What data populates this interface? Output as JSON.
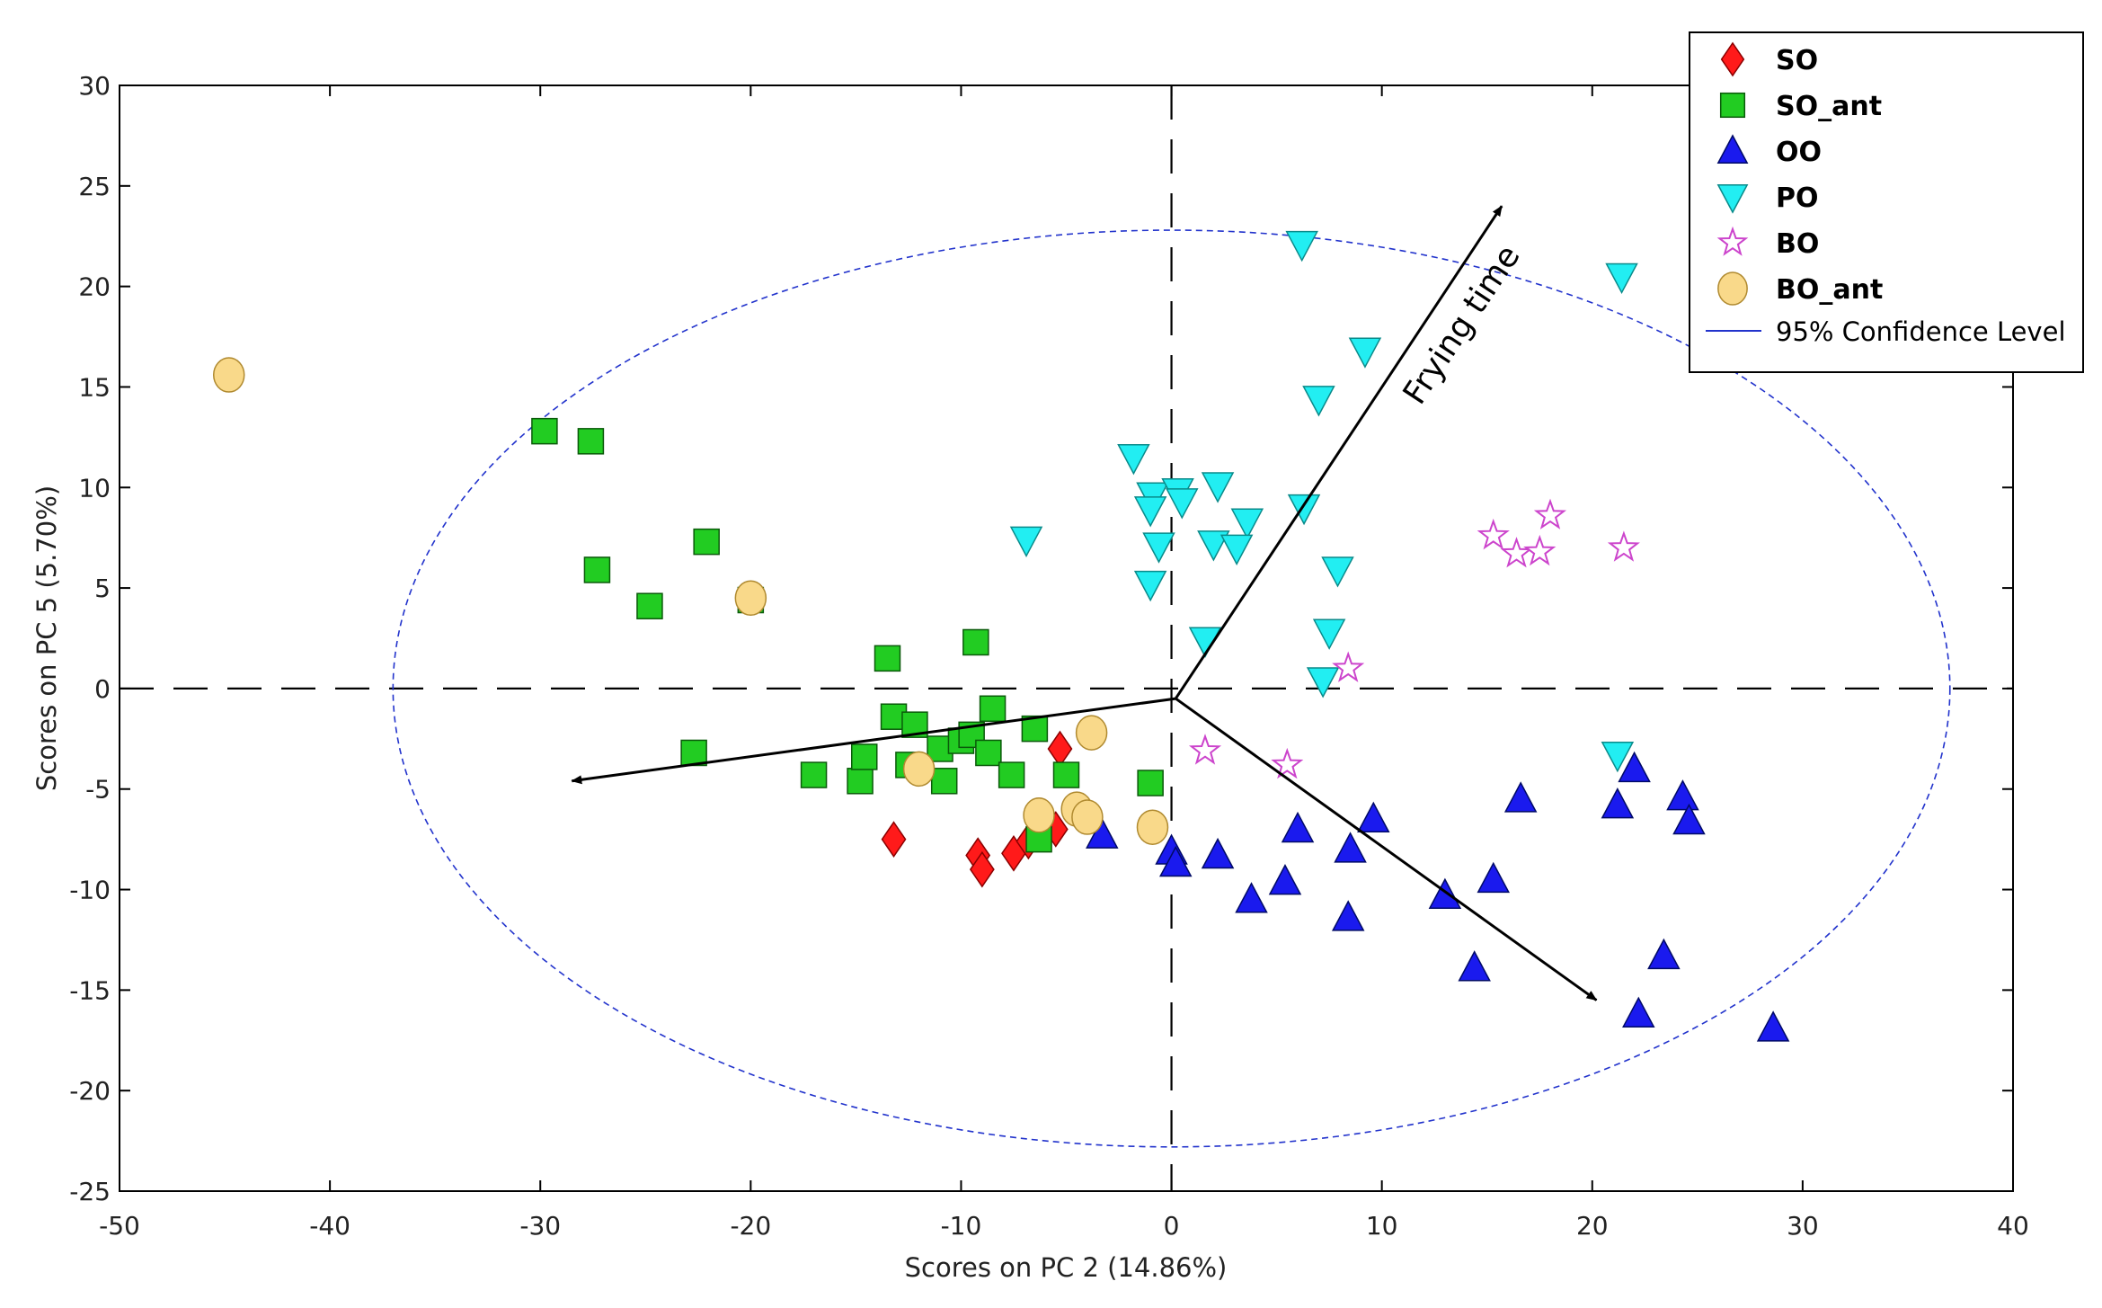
{
  "chart_data": {
    "type": "scatter",
    "title": "",
    "xlabel": "Scores on PC 2 (14.86%)",
    "ylabel": "Scores on PC 5 (5.70%)",
    "xlim": [
      -50,
      40
    ],
    "ylim": [
      -25,
      30
    ],
    "xticks": [
      -50,
      -40,
      -30,
      -20,
      -10,
      0,
      10,
      20,
      30,
      40
    ],
    "yticks": [
      30,
      25,
      20,
      15,
      10,
      5,
      0,
      -5,
      -10,
      -15,
      -20,
      -25
    ],
    "series": [
      {
        "name": "SO",
        "marker": "diamond",
        "color": "#ff1a1a",
        "points": [
          [
            -13.2,
            -7.5
          ],
          [
            -9.2,
            -8.3
          ],
          [
            -9.0,
            -9.0
          ],
          [
            -7.5,
            -8.2
          ],
          [
            -6.8,
            -7.6
          ],
          [
            -5.5,
            -7.0
          ],
          [
            -5.3,
            -3.0
          ]
        ]
      },
      {
        "name": "SO_ant",
        "marker": "square",
        "color": "#22cc22",
        "points": [
          [
            -29.8,
            12.8
          ],
          [
            -27.6,
            12.3
          ],
          [
            -27.3,
            5.9
          ],
          [
            -24.8,
            4.1
          ],
          [
            -22.1,
            7.3
          ],
          [
            -22.7,
            -3.2
          ],
          [
            -20.0,
            4.4
          ],
          [
            -17.0,
            -4.3
          ],
          [
            -14.8,
            -4.6
          ],
          [
            -14.6,
            -3.4
          ],
          [
            -13.5,
            1.5
          ],
          [
            -13.2,
            -1.4
          ],
          [
            -12.5,
            -3.8
          ],
          [
            -12.2,
            -1.8
          ],
          [
            -11.0,
            -3.0
          ],
          [
            -10.8,
            -4.6
          ],
          [
            -10.0,
            -2.6
          ],
          [
            -9.5,
            -2.3
          ],
          [
            -9.3,
            2.3
          ],
          [
            -8.7,
            -3.2
          ],
          [
            -8.5,
            -1.0
          ],
          [
            -7.6,
            -4.3
          ],
          [
            -6.5,
            -2.0
          ],
          [
            -6.3,
            -7.5
          ],
          [
            -5.0,
            -4.3
          ],
          [
            -1.0,
            -4.7
          ]
        ]
      },
      {
        "name": "OO",
        "marker": "triangle-up",
        "color": "#1a1aee",
        "points": [
          [
            -3.3,
            -7.3
          ],
          [
            0.0,
            -8.1
          ],
          [
            0.2,
            -8.7
          ],
          [
            2.2,
            -8.3
          ],
          [
            3.8,
            -10.5
          ],
          [
            5.4,
            -9.6
          ],
          [
            6.0,
            -7.0
          ],
          [
            8.5,
            -8.0
          ],
          [
            8.4,
            -11.4
          ],
          [
            9.6,
            -6.5
          ],
          [
            13.0,
            -10.3
          ],
          [
            14.4,
            -13.9
          ],
          [
            15.3,
            -9.5
          ],
          [
            16.6,
            -5.5
          ],
          [
            21.2,
            -5.8
          ],
          [
            22.0,
            -4.0
          ],
          [
            22.2,
            -16.2
          ],
          [
            23.4,
            -13.3
          ],
          [
            24.3,
            -5.4
          ],
          [
            24.6,
            -6.6
          ],
          [
            28.6,
            -16.9
          ]
        ]
      },
      {
        "name": "PO",
        "marker": "triangle-down",
        "color": "#22eef2",
        "points": [
          [
            6.2,
            22.1
          ],
          [
            21.4,
            20.5
          ],
          [
            9.2,
            16.8
          ],
          [
            7.0,
            14.4
          ],
          [
            -1.8,
            11.5
          ],
          [
            -0.9,
            9.6
          ],
          [
            0.3,
            9.8
          ],
          [
            -1.0,
            8.9
          ],
          [
            0.5,
            9.3
          ],
          [
            2.2,
            10.1
          ],
          [
            3.6,
            8.3
          ],
          [
            6.3,
            9.0
          ],
          [
            -0.6,
            7.1
          ],
          [
            2.0,
            7.2
          ],
          [
            3.1,
            7.0
          ],
          [
            -6.9,
            7.4
          ],
          [
            7.9,
            5.9
          ],
          [
            -1.0,
            5.2
          ],
          [
            1.6,
            2.4
          ],
          [
            7.5,
            2.8
          ],
          [
            7.2,
            0.4
          ],
          [
            21.2,
            -3.3
          ]
        ]
      },
      {
        "name": "BO",
        "marker": "star",
        "color": "#cc44cc",
        "points": [
          [
            15.3,
            7.6
          ],
          [
            16.4,
            6.7
          ],
          [
            17.5,
            6.8
          ],
          [
            18.0,
            8.6
          ],
          [
            21.5,
            7.0
          ],
          [
            8.4,
            1.0
          ],
          [
            1.6,
            -3.1
          ],
          [
            5.5,
            -3.8
          ]
        ]
      },
      {
        "name": "BO_ant",
        "marker": "circle",
        "color": "#f9d98a",
        "points": [
          [
            -44.8,
            15.6
          ],
          [
            -20.0,
            4.5
          ],
          [
            -12.0,
            -4.0
          ],
          [
            -3.8,
            -2.2
          ],
          [
            -6.3,
            -6.3
          ],
          [
            -4.5,
            -6.0
          ],
          [
            -4.0,
            -6.4
          ],
          [
            -0.9,
            -6.9
          ]
        ]
      }
    ],
    "confidence_ellipse": {
      "label": "95% Confidence Level",
      "center": [
        0,
        0
      ],
      "semi_x": 37,
      "semi_y": 22.8,
      "color": "#2233cc"
    },
    "reference_lines": {
      "x": 0,
      "y": 0
    },
    "arrows": [
      {
        "from": [
          0.2,
          -0.5
        ],
        "to": [
          15.7,
          24.0
        ],
        "label": "Frying time"
      },
      {
        "from": [
          0.2,
          -0.5
        ],
        "to": [
          -28.5,
          -4.6
        ],
        "label": ""
      },
      {
        "from": [
          0.2,
          -0.5
        ],
        "to": [
          20.2,
          -15.5
        ],
        "label": ""
      }
    ],
    "legend_position": "top-right"
  }
}
